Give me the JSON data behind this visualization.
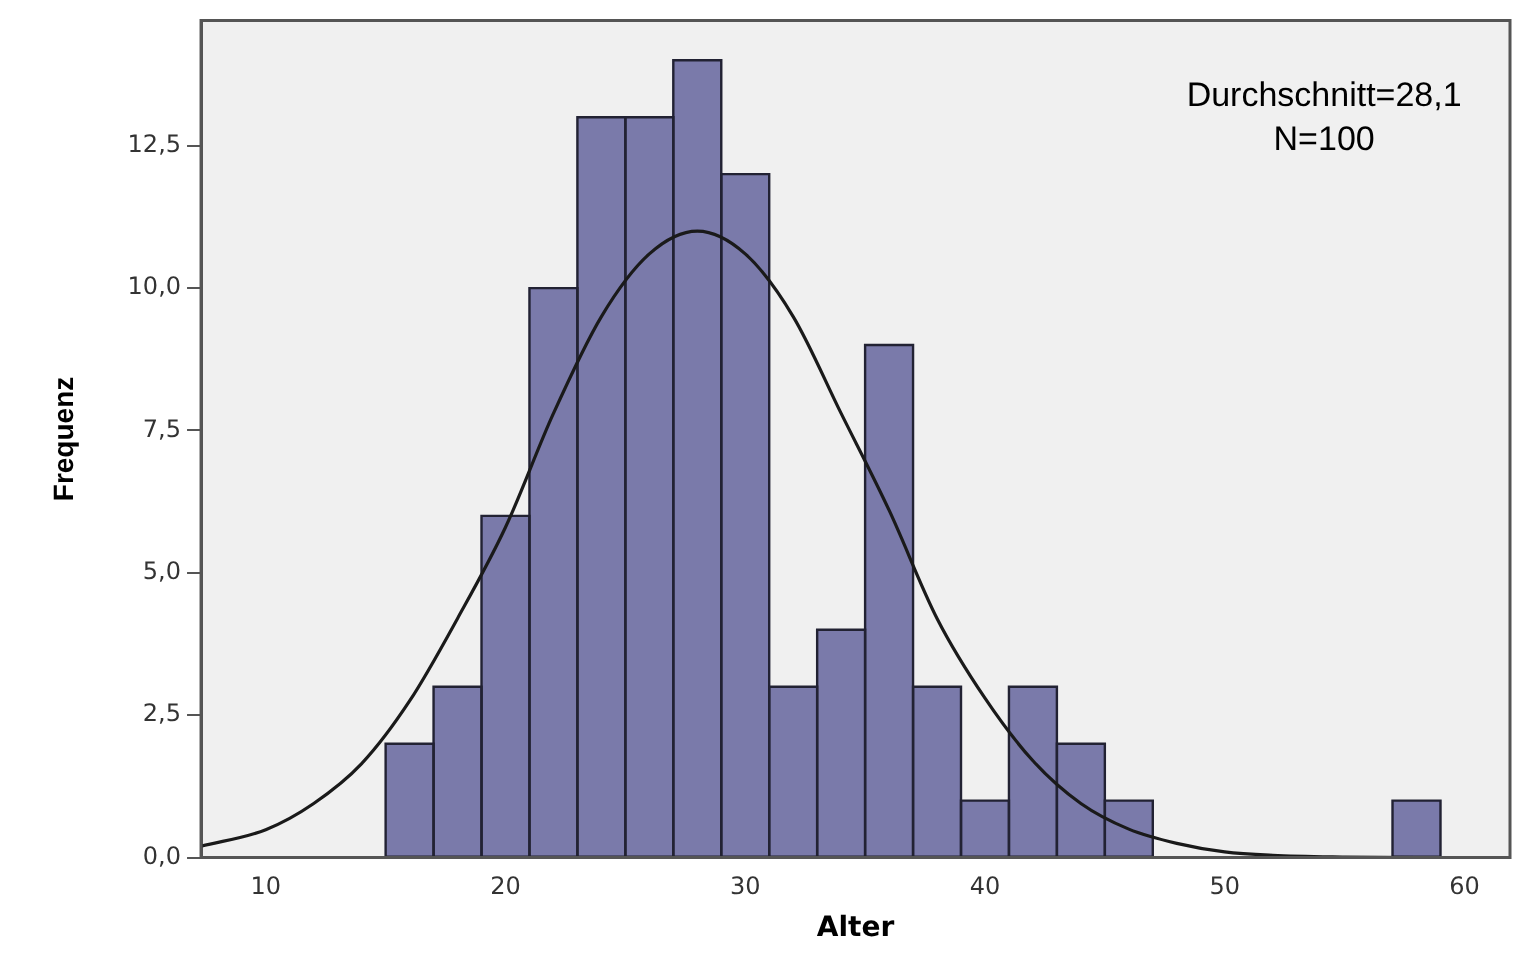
{
  "chart_data": {
    "type": "histogram",
    "xlabel": "Alter",
    "ylabel": "Frequenz",
    "bins": [
      15,
      17,
      19,
      21,
      23,
      25,
      27,
      29,
      31,
      33,
      35,
      37,
      39,
      41,
      43,
      45,
      47,
      49,
      51,
      53,
      55,
      57,
      59
    ],
    "values": [
      2,
      3,
      6,
      10,
      13,
      13,
      14,
      12,
      3,
      4,
      9,
      3,
      1,
      3,
      2,
      1,
      0,
      0,
      0,
      0,
      0,
      1
    ],
    "color": "#7a7aaa",
    "series": [
      {
        "type": "line",
        "color": "#1a1a1a",
        "x": [
          7.3,
          10,
          12,
          14,
          16,
          18,
          20,
          22,
          24,
          26,
          28,
          30,
          32,
          34,
          36,
          38,
          40,
          42,
          44,
          46,
          48,
          50,
          52,
          55,
          58,
          61.9
        ],
        "values": [
          0.2,
          0.49,
          0.95,
          1.65,
          2.75,
          4.2,
          5.8,
          7.8,
          9.5,
          10.6,
          11.0,
          10.6,
          9.5,
          7.8,
          6.1,
          4.2,
          2.8,
          1.7,
          0.95,
          0.5,
          0.25,
          0.1,
          0.04,
          0.01,
          0,
          0
        ]
      }
    ],
    "xlim": [
      7.3,
      61.9
    ],
    "xticks": [
      10,
      20,
      30,
      40,
      50,
      60
    ],
    "ylim": [
      0,
      14.7
    ],
    "yticks": [
      {
        "value": 0,
        "label": "0,0"
      },
      {
        "value": 2.5,
        "label": "2,5"
      },
      {
        "value": 5,
        "label": "5,0"
      },
      {
        "value": 7.5,
        "label": "7,5"
      },
      {
        "value": 10,
        "label": "10,0"
      },
      {
        "value": 12.5,
        "label": "12,5"
      }
    ],
    "grid": false,
    "legend": false,
    "annotations": [
      "Durchschnitt=28,1",
      "N=100"
    ]
  }
}
